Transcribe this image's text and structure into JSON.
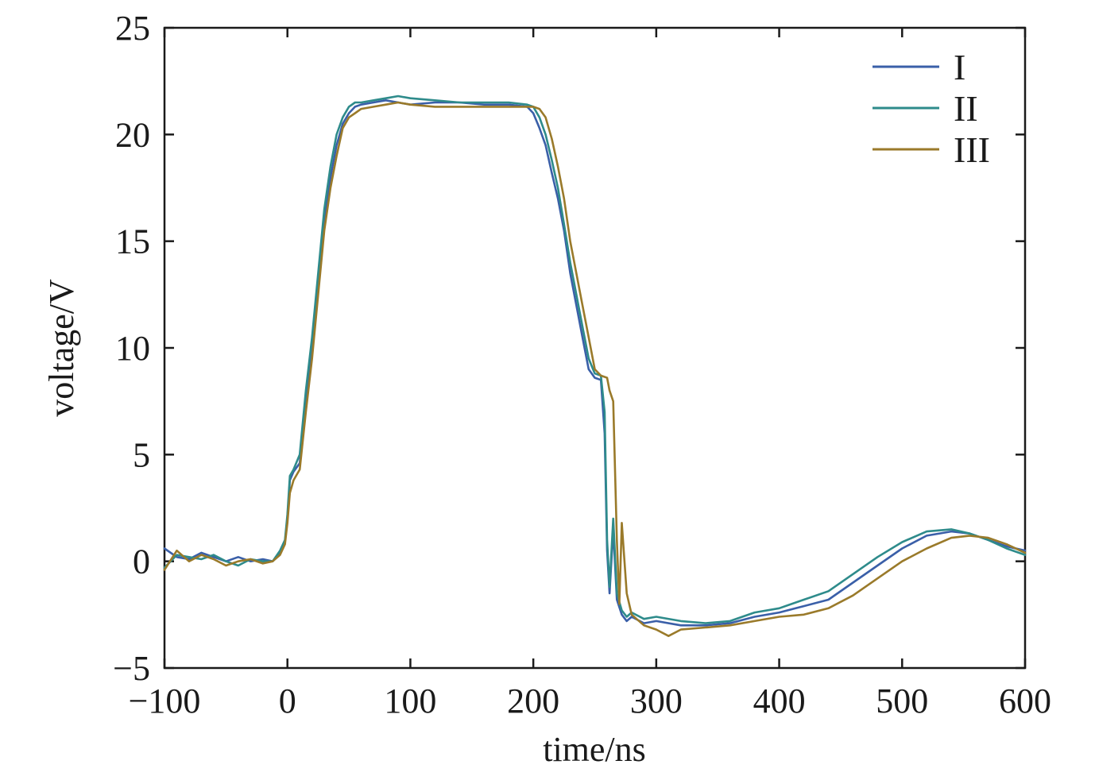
{
  "chart_data": {
    "type": "line",
    "xlabel": "time/ns",
    "ylabel": "voltage/V",
    "xlim": [
      -100,
      600
    ],
    "ylim": [
      -5,
      25
    ],
    "xticks": [
      -100,
      0,
      100,
      200,
      300,
      400,
      500,
      600
    ],
    "yticks": [
      -5,
      0,
      5,
      10,
      15,
      20,
      25
    ],
    "xtick_labels": [
      "−100",
      "0",
      "100",
      "200",
      "300",
      "400",
      "500",
      "600"
    ],
    "ytick_labels": [
      "−5",
      "0",
      "5",
      "10",
      "15",
      "20",
      "25"
    ],
    "grid": false,
    "legend_position": "top-right",
    "series": [
      {
        "name": "I",
        "color": "#3a5fa8",
        "x": [
          -100,
          -90,
          -80,
          -70,
          -60,
          -50,
          -40,
          -30,
          -20,
          -12,
          -6,
          -2,
          0,
          2,
          5,
          10,
          15,
          20,
          25,
          30,
          35,
          40,
          45,
          50,
          55,
          60,
          70,
          80,
          90,
          100,
          120,
          140,
          160,
          180,
          195,
          200,
          205,
          210,
          215,
          220,
          225,
          230,
          235,
          240,
          245,
          250,
          255,
          258,
          260,
          262,
          265,
          268,
          272,
          276,
          280,
          290,
          300,
          320,
          340,
          360,
          380,
          400,
          420,
          440,
          460,
          480,
          500,
          520,
          540,
          555,
          570,
          585,
          600
        ],
        "y": [
          0.6,
          0.2,
          0.1,
          0.4,
          0.2,
          0.0,
          0.2,
          0.0,
          0.1,
          0.0,
          0.4,
          0.9,
          2.0,
          3.8,
          4.2,
          4.6,
          7.5,
          10.0,
          13.0,
          16.0,
          18.0,
          19.5,
          20.5,
          21.0,
          21.3,
          21.4,
          21.5,
          21.6,
          21.5,
          21.4,
          21.5,
          21.5,
          21.4,
          21.4,
          21.3,
          21.0,
          20.3,
          19.5,
          18.2,
          17.0,
          15.5,
          13.5,
          12.0,
          10.5,
          9.0,
          8.6,
          8.5,
          6.0,
          0.5,
          -1.5,
          1.5,
          -1.8,
          -2.5,
          -2.8,
          -2.6,
          -2.9,
          -2.8,
          -3.0,
          -3.0,
          -2.9,
          -2.6,
          -2.4,
          -2.1,
          -1.8,
          -1.0,
          -0.2,
          0.6,
          1.2,
          1.4,
          1.3,
          1.0,
          0.7,
          0.5
        ]
      },
      {
        "name": "II",
        "color": "#2e8b8b",
        "x": [
          -100,
          -90,
          -80,
          -70,
          -60,
          -50,
          -40,
          -30,
          -20,
          -12,
          -6,
          -2,
          0,
          2,
          5,
          10,
          15,
          20,
          25,
          30,
          35,
          40,
          45,
          50,
          55,
          60,
          70,
          80,
          90,
          100,
          120,
          140,
          160,
          180,
          195,
          200,
          205,
          210,
          215,
          220,
          225,
          230,
          235,
          240,
          245,
          250,
          255,
          258,
          260,
          262,
          265,
          268,
          272,
          276,
          280,
          290,
          300,
          320,
          340,
          360,
          380,
          400,
          420,
          440,
          460,
          480,
          500,
          520,
          540,
          555,
          570,
          585,
          600
        ],
        "y": [
          -0.3,
          0.3,
          0.2,
          0.1,
          0.3,
          0.0,
          -0.2,
          0.1,
          0.0,
          0.0,
          0.5,
          1.0,
          2.2,
          4.0,
          4.3,
          5.0,
          8.0,
          10.5,
          13.5,
          16.5,
          18.5,
          20.0,
          20.8,
          21.3,
          21.5,
          21.5,
          21.6,
          21.7,
          21.8,
          21.7,
          21.6,
          21.5,
          21.5,
          21.5,
          21.4,
          21.3,
          20.8,
          20.0,
          18.8,
          17.5,
          15.8,
          14.0,
          12.5,
          11.0,
          9.5,
          8.8,
          8.7,
          7.0,
          1.0,
          -1.2,
          2.0,
          -1.5,
          -2.3,
          -2.6,
          -2.4,
          -2.7,
          -2.6,
          -2.8,
          -2.9,
          -2.8,
          -2.4,
          -2.2,
          -1.8,
          -1.4,
          -0.6,
          0.2,
          0.9,
          1.4,
          1.5,
          1.3,
          1.0,
          0.6,
          0.3
        ]
      },
      {
        "name": "III",
        "color": "#9a7a2a",
        "x": [
          -100,
          -90,
          -80,
          -70,
          -60,
          -50,
          -40,
          -30,
          -20,
          -12,
          -6,
          -2,
          0,
          2,
          5,
          10,
          15,
          20,
          25,
          30,
          35,
          40,
          45,
          50,
          55,
          60,
          70,
          80,
          90,
          100,
          120,
          140,
          160,
          180,
          195,
          200,
          205,
          210,
          215,
          220,
          225,
          230,
          235,
          240,
          245,
          250,
          255,
          260,
          262,
          265,
          268,
          270,
          272,
          276,
          280,
          290,
          300,
          310,
          320,
          340,
          360,
          380,
          400,
          420,
          440,
          460,
          480,
          500,
          520,
          540,
          555,
          570,
          585,
          600
        ],
        "y": [
          -0.4,
          0.5,
          0.0,
          0.3,
          0.1,
          -0.2,
          0.0,
          0.1,
          -0.1,
          0.0,
          0.3,
          0.8,
          1.8,
          3.2,
          3.8,
          4.3,
          7.0,
          9.5,
          12.5,
          15.5,
          17.5,
          19.0,
          20.3,
          20.8,
          21.0,
          21.2,
          21.3,
          21.4,
          21.5,
          21.4,
          21.3,
          21.3,
          21.3,
          21.3,
          21.3,
          21.3,
          21.2,
          20.8,
          19.8,
          18.5,
          17.0,
          15.0,
          13.5,
          12.0,
          10.5,
          9.0,
          8.7,
          8.6,
          8.0,
          7.5,
          1.0,
          -2.0,
          1.8,
          -1.5,
          -2.5,
          -3.0,
          -3.2,
          -3.5,
          -3.2,
          -3.1,
          -3.0,
          -2.8,
          -2.6,
          -2.5,
          -2.2,
          -1.6,
          -0.8,
          0.0,
          0.6,
          1.1,
          1.2,
          1.1,
          0.8,
          0.4
        ]
      }
    ]
  }
}
